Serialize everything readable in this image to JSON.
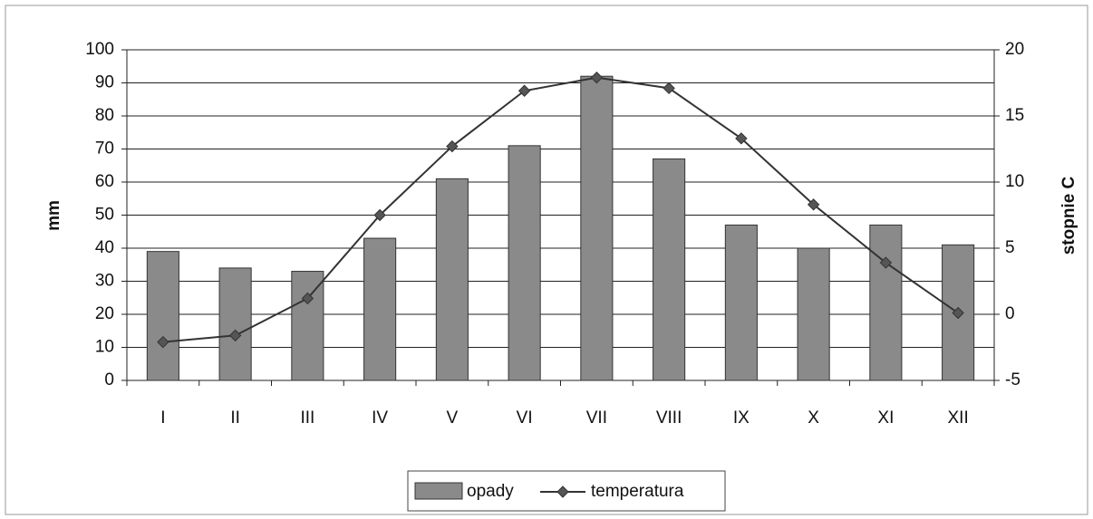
{
  "chart_data": {
    "type": "bar-line",
    "categories": [
      "I",
      "II",
      "III",
      "IV",
      "V",
      "VI",
      "VII",
      "VIII",
      "IX",
      "X",
      "XI",
      "XII"
    ],
    "y_label": "mm",
    "y2_label": "stopnie C",
    "series": [
      {
        "name": "opady",
        "type": "bar",
        "color": "#8a8a8a",
        "values": [
          39,
          34,
          33,
          43,
          61,
          71,
          92,
          67,
          47,
          40,
          47,
          41
        ]
      },
      {
        "name": "temperatura",
        "type": "line",
        "axis": "y2",
        "color": "#333333",
        "values": [
          -2.1,
          -1.6,
          1.2,
          7.5,
          12.7,
          16.9,
          17.9,
          17.1,
          13.3,
          8.3,
          3.9,
          0.1
        ]
      }
    ],
    "ylim": [
      0,
      100
    ],
    "yticks": [
      0,
      10,
      20,
      30,
      40,
      50,
      60,
      70,
      80,
      90,
      100
    ],
    "y2lim": [
      -5,
      20
    ],
    "y2ticks": [
      -5,
      0,
      5,
      10,
      15,
      20
    ],
    "grid": true,
    "legend": "bottom"
  }
}
